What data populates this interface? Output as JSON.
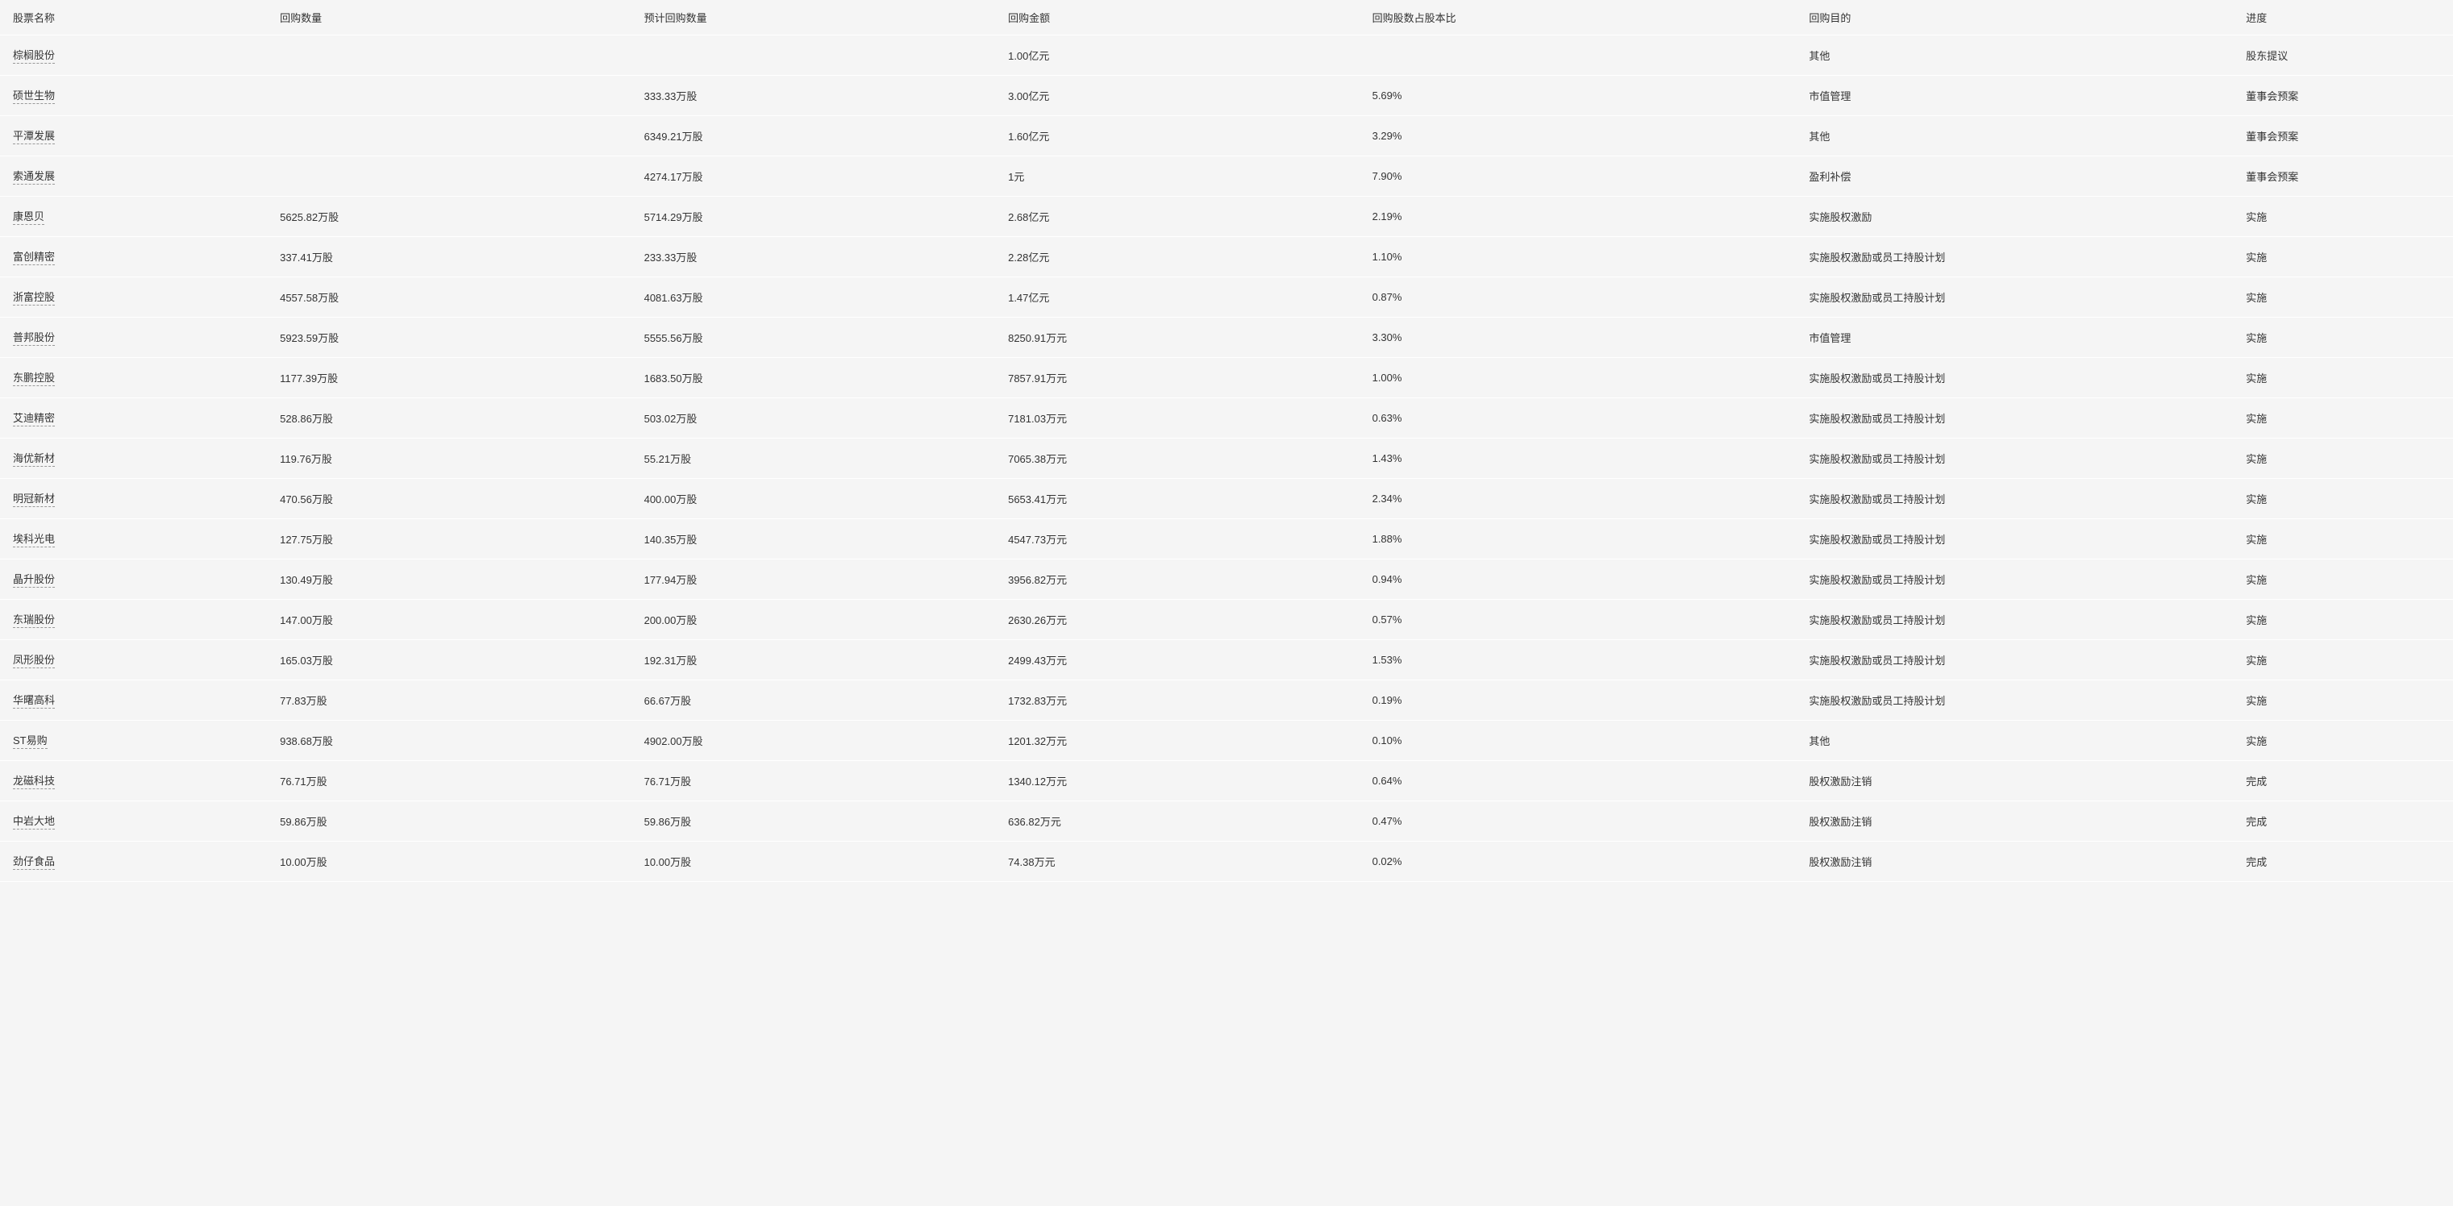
{
  "table": {
    "type": "table",
    "background_color": "#f5f5f5",
    "row_border_color": "#ffffff",
    "text_color": "#333333",
    "font_size": 13,
    "columns": [
      {
        "key": "name",
        "label": "股票名称",
        "width": "11%"
      },
      {
        "key": "qty",
        "label": "回购数量",
        "width": "15%"
      },
      {
        "key": "est_qty",
        "label": "预计回购数量",
        "width": "15%"
      },
      {
        "key": "amount",
        "label": "回购金额",
        "width": "15%"
      },
      {
        "key": "ratio",
        "label": "回购股数占股本比",
        "width": "18%"
      },
      {
        "key": "purpose",
        "label": "回购目的",
        "width": "18%"
      },
      {
        "key": "progress",
        "label": "进度",
        "width": "8%"
      }
    ],
    "rows": [
      {
        "name": "棕榈股份",
        "qty": "",
        "est_qty": "",
        "amount": "1.00亿元",
        "ratio": "",
        "purpose": "其他",
        "progress": "股东提议"
      },
      {
        "name": "硕世生物",
        "qty": "",
        "est_qty": "333.33万股",
        "amount": "3.00亿元",
        "ratio": "5.69%",
        "purpose": "市值管理",
        "progress": "董事会预案"
      },
      {
        "name": "平潭发展",
        "qty": "",
        "est_qty": "6349.21万股",
        "amount": "1.60亿元",
        "ratio": "3.29%",
        "purpose": "其他",
        "progress": "董事会预案"
      },
      {
        "name": "索通发展",
        "qty": "",
        "est_qty": "4274.17万股",
        "amount": "1元",
        "ratio": "7.90%",
        "purpose": "盈利补偿",
        "progress": "董事会预案"
      },
      {
        "name": "康恩贝",
        "qty": "5625.82万股",
        "est_qty": "5714.29万股",
        "amount": "2.68亿元",
        "ratio": "2.19%",
        "purpose": "实施股权激励",
        "progress": "实施"
      },
      {
        "name": "富创精密",
        "qty": "337.41万股",
        "est_qty": "233.33万股",
        "amount": "2.28亿元",
        "ratio": "1.10%",
        "purpose": "实施股权激励或员工持股计划",
        "progress": "实施"
      },
      {
        "name": "浙富控股",
        "qty": "4557.58万股",
        "est_qty": "4081.63万股",
        "amount": "1.47亿元",
        "ratio": "0.87%",
        "purpose": "实施股权激励或员工持股计划",
        "progress": "实施"
      },
      {
        "name": "普邦股份",
        "qty": "5923.59万股",
        "est_qty": "5555.56万股",
        "amount": "8250.91万元",
        "ratio": "3.30%",
        "purpose": "市值管理",
        "progress": "实施"
      },
      {
        "name": "东鹏控股",
        "qty": "1177.39万股",
        "est_qty": "1683.50万股",
        "amount": "7857.91万元",
        "ratio": "1.00%",
        "purpose": "实施股权激励或员工持股计划",
        "progress": "实施"
      },
      {
        "name": "艾迪精密",
        "qty": "528.86万股",
        "est_qty": "503.02万股",
        "amount": "7181.03万元",
        "ratio": "0.63%",
        "purpose": "实施股权激励或员工持股计划",
        "progress": "实施"
      },
      {
        "name": "海优新材",
        "qty": "119.76万股",
        "est_qty": "55.21万股",
        "amount": "7065.38万元",
        "ratio": "1.43%",
        "purpose": "实施股权激励或员工持股计划",
        "progress": "实施"
      },
      {
        "name": "明冠新材",
        "qty": "470.56万股",
        "est_qty": "400.00万股",
        "amount": "5653.41万元",
        "ratio": "2.34%",
        "purpose": "实施股权激励或员工持股计划",
        "progress": "实施"
      },
      {
        "name": "埃科光电",
        "qty": "127.75万股",
        "est_qty": "140.35万股",
        "amount": "4547.73万元",
        "ratio": "1.88%",
        "purpose": "实施股权激励或员工持股计划",
        "progress": "实施"
      },
      {
        "name": "晶升股份",
        "qty": "130.49万股",
        "est_qty": "177.94万股",
        "amount": "3956.82万元",
        "ratio": "0.94%",
        "purpose": "实施股权激励或员工持股计划",
        "progress": "实施"
      },
      {
        "name": "东瑞股份",
        "qty": "147.00万股",
        "est_qty": "200.00万股",
        "amount": "2630.26万元",
        "ratio": "0.57%",
        "purpose": "实施股权激励或员工持股计划",
        "progress": "实施"
      },
      {
        "name": "凤形股份",
        "qty": "165.03万股",
        "est_qty": "192.31万股",
        "amount": "2499.43万元",
        "ratio": "1.53%",
        "purpose": "实施股权激励或员工持股计划",
        "progress": "实施"
      },
      {
        "name": "华曙高科",
        "qty": "77.83万股",
        "est_qty": "66.67万股",
        "amount": "1732.83万元",
        "ratio": "0.19%",
        "purpose": "实施股权激励或员工持股计划",
        "progress": "实施"
      },
      {
        "name": "ST易购",
        "qty": "938.68万股",
        "est_qty": "4902.00万股",
        "amount": "1201.32万元",
        "ratio": "0.10%",
        "purpose": "其他",
        "progress": "实施"
      },
      {
        "name": "龙磁科技",
        "qty": "76.71万股",
        "est_qty": "76.71万股",
        "amount": "1340.12万元",
        "ratio": "0.64%",
        "purpose": "股权激励注销",
        "progress": "完成"
      },
      {
        "name": "中岩大地",
        "qty": "59.86万股",
        "est_qty": "59.86万股",
        "amount": "636.82万元",
        "ratio": "0.47%",
        "purpose": "股权激励注销",
        "progress": "完成"
      },
      {
        "name": "劲仔食品",
        "qty": "10.00万股",
        "est_qty": "10.00万股",
        "amount": "74.38万元",
        "ratio": "0.02%",
        "purpose": "股权激励注销",
        "progress": "完成"
      }
    ]
  }
}
